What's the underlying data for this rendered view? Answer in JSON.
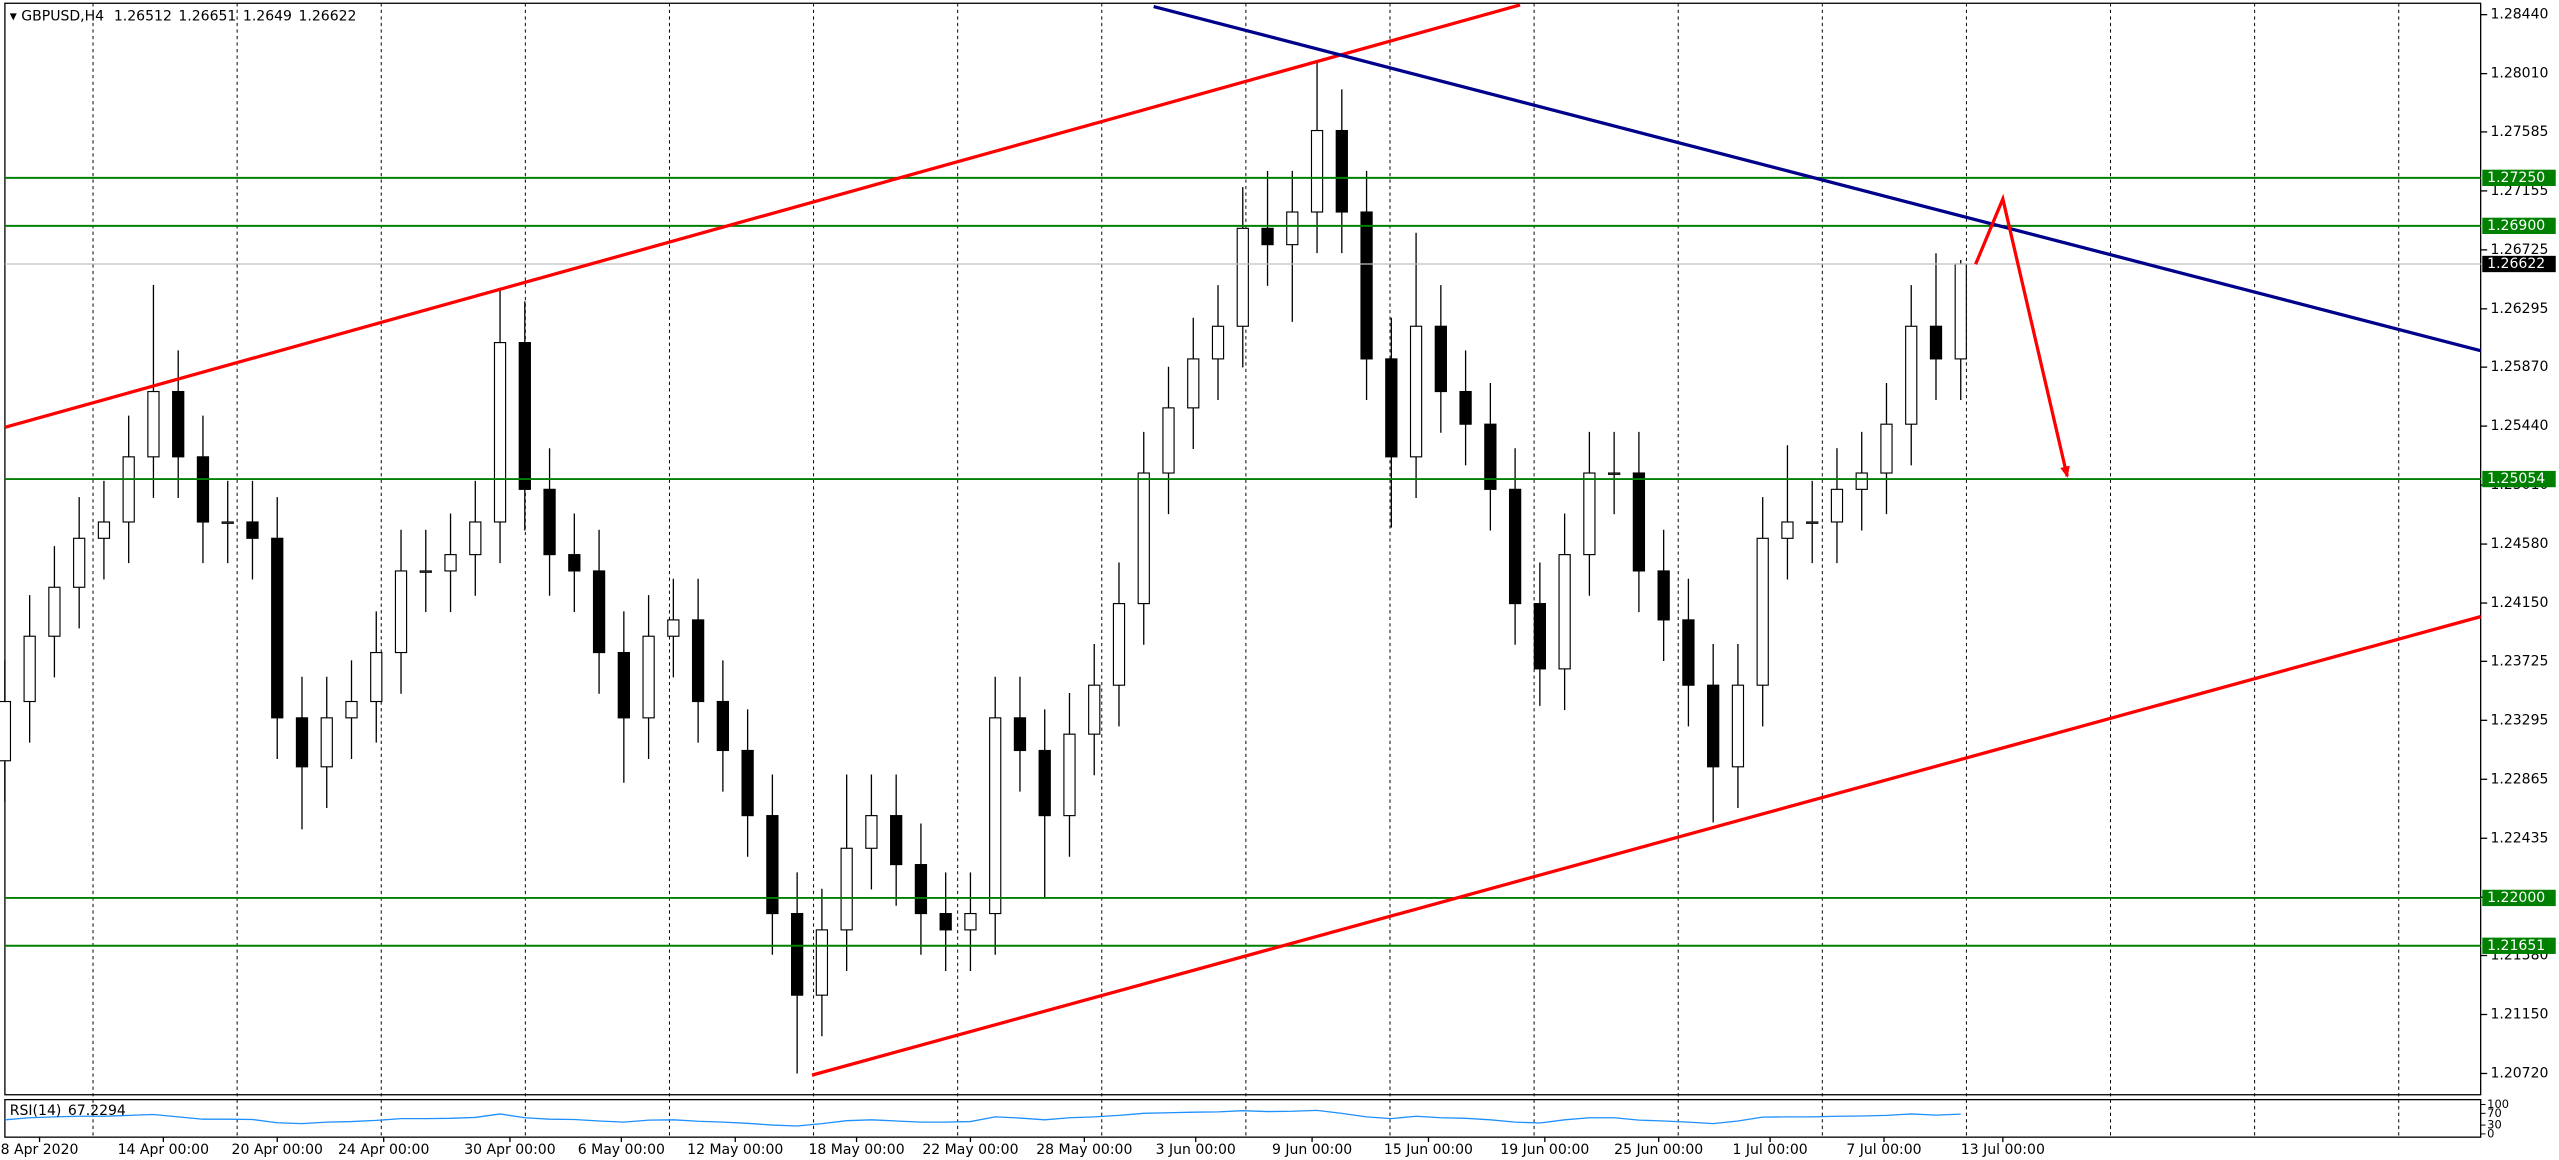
{
  "chart_data": {
    "type": "candlestick",
    "symbol": "GBPUSD,H4",
    "last_bar": {
      "open": 1.26512,
      "high": 1.26651,
      "low": 1.2649,
      "close": 1.26622
    },
    "xlim": [
      0,
      100
    ],
    "ylim": [
      1.20565,
      1.28523
    ],
    "yticks": [
      {
        "value": 1.2844,
        "label": "1.28440"
      },
      {
        "value": 1.2801,
        "label": "1.28010"
      },
      1.27585,
      1.27155,
      1.26725,
      1.26295,
      {
        "value": 1.2587,
        "label": "1.25870"
      },
      {
        "value": 1.2544,
        "label": "1.25440"
      },
      {
        "value": 1.2501,
        "label": "1.25010"
      },
      {
        "value": 1.2458,
        "label": "1.24580"
      },
      {
        "value": 1.2415,
        "label": "1.24150"
      },
      1.23725,
      1.23295,
      1.22865,
      1.22435,
      1.22005,
      {
        "value": 1.2158,
        "label": "1.21580"
      },
      {
        "value": 1.2115,
        "label": "1.21150"
      },
      {
        "value": 1.2072,
        "label": "1.20720"
      }
    ],
    "xticks": [
      {
        "value": 1.4,
        "label": "8 Apr 2020"
      },
      {
        "value": 6.4,
        "label": "14 Apr 00:00"
      },
      {
        "value": 11.0,
        "label": "20 Apr 00:00"
      },
      {
        "value": 15.3,
        "label": "24 Apr 00:00"
      },
      {
        "value": 20.4,
        "label": "30 Apr 00:00"
      },
      {
        "value": 24.9,
        "label": "6 May 00:00"
      },
      {
        "value": 29.5,
        "label": "12 May 00:00"
      },
      {
        "value": 34.4,
        "label": "18 May 00:00"
      },
      {
        "value": 39.0,
        "label": "22 May 00:00"
      },
      {
        "value": 43.6,
        "label": "28 May 00:00"
      },
      {
        "value": 48.1,
        "label": "3 Jun 00:00"
      },
      {
        "value": 52.8,
        "label": "9 Jun 00:00"
      },
      {
        "value": 57.5,
        "label": "15 Jun 00:00"
      },
      {
        "value": 62.2,
        "label": "19 Jun 00:00"
      },
      {
        "value": 66.8,
        "label": "25 Jun 00:00"
      },
      {
        "value": 71.3,
        "label": "1 Jul 00:00"
      },
      {
        "value": 75.9,
        "label": "7 Jul 00:00"
      },
      {
        "value": 80.7,
        "label": "13 Jul 00:00"
      }
    ],
    "open": [
      1.23,
      1.23432,
      1.23908,
      1.24265,
      1.24622,
      1.24741,
      1.25216,
      1.25692,
      1.25216,
      1.24741,
      1.24741,
      1.24622,
      1.23313,
      1.22956,
      1.23313,
      1.23432,
      1.23789,
      1.24384,
      1.24384,
      1.24503,
      1.24741,
      1.26049,
      1.24979,
      1.24503,
      1.24384,
      1.23789,
      1.23313,
      1.23908,
      1.24027,
      1.23432,
      1.23075,
      1.226,
      1.21886,
      1.21291,
      1.21767,
      1.22362,
      1.226,
      1.22243,
      1.21886,
      1.21767,
      1.21886,
      1.23313,
      1.23075,
      1.226,
      1.23194,
      1.23551,
      1.24146,
      1.25098,
      1.25573,
      1.2593,
      1.26168,
      1.26882,
      1.26763,
      1.27001,
      1.27595,
      1.27001,
      1.2593,
      1.25216,
      1.26168,
      1.25692,
      1.25454,
      1.24979,
      1.24146,
      1.2367,
      1.24503,
      1.25098,
      1.25098,
      1.24384,
      1.24027,
      1.23551,
      1.22956,
      1.23551,
      1.24622,
      1.24741,
      1.24741,
      1.24979,
      1.25098,
      1.25454,
      1.26168,
      1.2593
    ],
    "high": [
      1.23732,
      1.24208,
      1.24565,
      1.24922,
      1.25041,
      1.25516,
      1.2647,
      1.25992,
      1.25516,
      1.25041,
      1.25041,
      1.24922,
      1.23613,
      1.23613,
      1.23732,
      1.24089,
      1.24684,
      1.24684,
      1.24803,
      1.25041,
      1.2645,
      1.26349,
      1.25279,
      1.24803,
      1.24684,
      1.24089,
      1.24208,
      1.24327,
      1.24327,
      1.23732,
      1.23375,
      1.229,
      1.22186,
      1.22067,
      1.229,
      1.229,
      1.229,
      1.22543,
      1.22186,
      1.22186,
      1.23613,
      1.23613,
      1.23375,
      1.23494,
      1.23851,
      1.24446,
      1.25398,
      1.25873,
      1.2623,
      1.26468,
      1.27182,
      1.273,
      1.27301,
      1.281,
      1.27895,
      1.27301,
      1.2623,
      1.2685,
      1.26468,
      1.25992,
      1.25754,
      1.25279,
      1.24446,
      1.24803,
      1.25398,
      1.25398,
      1.25398,
      1.24684,
      1.24327,
      1.23851,
      1.23851,
      1.24922,
      1.253,
      1.25041,
      1.25279,
      1.25398,
      1.25754,
      1.26468,
      1.267,
      1.26651
    ],
    "low": [
      1.227,
      1.23132,
      1.23608,
      1.23965,
      1.24322,
      1.24441,
      1.24916,
      1.24916,
      1.24441,
      1.24441,
      1.24322,
      1.23013,
      1.225,
      1.22656,
      1.23013,
      1.23132,
      1.23489,
      1.24084,
      1.24084,
      1.24203,
      1.24441,
      1.24679,
      1.24203,
      1.24084,
      1.23489,
      1.2284,
      1.23013,
      1.23608,
      1.23132,
      1.22775,
      1.223,
      1.21586,
      1.2072,
      1.20991,
      1.21467,
      1.22062,
      1.21943,
      1.21586,
      1.21467,
      1.21467,
      1.21586,
      1.22775,
      1.22,
      1.223,
      1.22894,
      1.23251,
      1.23846,
      1.24798,
      1.25273,
      1.2563,
      1.25868,
      1.26463,
      1.262,
      1.26701,
      1.26701,
      1.2563,
      1.247,
      1.24916,
      1.25392,
      1.25154,
      1.24679,
      1.23846,
      1.234,
      1.2337,
      1.24203,
      1.24798,
      1.24084,
      1.23727,
      1.23251,
      1.2255,
      1.22656,
      1.23251,
      1.24322,
      1.24441,
      1.24441,
      1.24679,
      1.24798,
      1.25154,
      1.2563,
      1.2563
    ],
    "close": [
      1.23432,
      1.23908,
      1.24265,
      1.24622,
      1.24741,
      1.25216,
      1.25692,
      1.25216,
      1.24741,
      1.24741,
      1.24622,
      1.23313,
      1.22956,
      1.23313,
      1.23432,
      1.23789,
      1.24384,
      1.24384,
      1.24503,
      1.24741,
      1.26049,
      1.24979,
      1.24503,
      1.24384,
      1.23789,
      1.23313,
      1.23908,
      1.24027,
      1.23432,
      1.23075,
      1.226,
      1.21886,
      1.21291,
      1.21767,
      1.22362,
      1.226,
      1.22243,
      1.21886,
      1.21767,
      1.21886,
      1.23313,
      1.23075,
      1.226,
      1.23194,
      1.23551,
      1.24146,
      1.25098,
      1.25573,
      1.2593,
      1.26168,
      1.26882,
      1.26763,
      1.27001,
      1.27595,
      1.27001,
      1.2593,
      1.25216,
      1.26168,
      1.25692,
      1.25454,
      1.24979,
      1.24146,
      1.2367,
      1.24503,
      1.25098,
      1.25098,
      1.24384,
      1.24027,
      1.23551,
      1.22956,
      1.23551,
      1.24622,
      1.24741,
      1.24741,
      1.24979,
      1.25098,
      1.25454,
      1.26168,
      1.2593,
      1.26622
    ],
    "bull_color": "#ffffff",
    "bear_color": "#000000",
    "candle_edge": "#000000",
    "levels": [
      {
        "value": 1.2725,
        "label": "1.27250"
      },
      {
        "value": 1.269,
        "label": "1.26900"
      },
      1.25054,
      {
        "value": 1.22,
        "label": "1.22000"
      },
      1.21651
    ],
    "level_color": "#008000",
    "current_price": 1.26622,
    "trendlines": [
      {
        "color": "#ff0000",
        "points": [
          [
            0,
            1.25431
          ],
          [
            61.2,
            1.28511
          ]
        ]
      },
      {
        "color": "#ff0000",
        "points": [
          [
            32.6,
            1.20708
          ],
          [
            100,
            1.24051
          ]
        ]
      },
      {
        "color": "#00008b",
        "points": [
          [
            46.4,
            1.28499
          ],
          [
            100,
            1.2599
          ]
        ]
      }
    ],
    "arrow": {
      "color": "#ff0000",
      "points": [
        [
          79.6,
          1.2662
        ],
        [
          80.7,
          1.27096
        ],
        [
          83.3,
          1.25074
        ]
      ]
    },
    "rsi": {
      "name": "RSI(14)",
      "value": 67.2294,
      "color": "#1e90ff",
      "ylim": [
        0,
        100
      ],
      "yticks": [
        100,
        70,
        30,
        0
      ],
      "values": [
        48,
        55,
        58,
        60,
        60,
        63,
        66,
        58,
        50,
        50,
        49,
        38,
        35,
        40,
        42,
        46,
        52,
        52,
        53,
        56,
        68,
        55,
        50,
        49,
        44,
        40,
        47,
        48,
        43,
        40,
        36,
        30,
        27,
        35,
        45,
        48,
        44,
        40,
        40,
        42,
        58,
        54,
        48,
        55,
        58,
        63,
        70,
        72,
        74,
        75,
        79,
        76,
        77,
        80,
        70,
        58,
        52,
        60,
        55,
        53,
        48,
        40,
        37,
        48,
        55,
        55,
        47,
        44,
        40,
        35,
        44,
        57,
        58,
        58,
        60,
        61,
        63,
        68,
        64,
        67.2294
      ]
    }
  }
}
